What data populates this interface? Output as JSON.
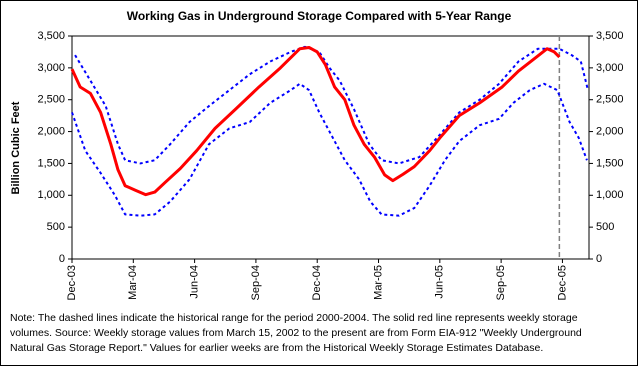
{
  "chart_data": {
    "type": "line",
    "title": "Working Gas in Underground Storage Compared with 5-Year Range",
    "y_label": "Billion Cubic Feet",
    "xlim": [
      0,
      25.3
    ],
    "xticks": [
      {
        "value": 0,
        "label": "Dec-03"
      },
      {
        "value": 3,
        "label": "Mar-04"
      },
      {
        "value": 6,
        "label": "Jun-04"
      },
      {
        "value": 9,
        "label": "Sep-04"
      },
      {
        "value": 12,
        "label": "Dec-04"
      },
      {
        "value": 15,
        "label": "Mar-05"
      },
      {
        "value": 18,
        "label": "Jun-05"
      },
      {
        "value": 21,
        "label": "Sep-05"
      },
      {
        "value": 24,
        "label": "Dec-05"
      }
    ],
    "ylim": [
      0,
      3500
    ],
    "yticks": [
      0,
      500,
      {
        "value": 1000,
        "label": "1,000"
      },
      {
        "value": 1500,
        "label": "1,500"
      },
      {
        "value": 2000,
        "label": "2,000"
      },
      {
        "value": 2500,
        "label": "2,500"
      },
      {
        "value": 3000,
        "label": "3,000"
      },
      {
        "value": 3500,
        "label": "3,500"
      }
    ],
    "y2lim": [
      0,
      3500
    ],
    "y2ticks": [
      0,
      500,
      {
        "value": 1000,
        "label": "1,000"
      },
      {
        "value": 1500,
        "label": "1,500"
      },
      {
        "value": 2000,
        "label": "2,000"
      },
      {
        "value": 2500,
        "label": "2,500"
      },
      {
        "value": 3000,
        "label": "3,000"
      },
      {
        "value": 3500,
        "label": "3,500"
      }
    ],
    "vline": {
      "x": 23.85,
      "color": "#808080"
    },
    "series": [
      {
        "color": "#0000ff",
        "style": "dashed",
        "x": [
          0.15,
          0.9,
          1.65,
          2.25,
          2.6,
          3.35,
          4.05,
          4.8,
          5.75,
          6.7,
          7.7,
          8.7,
          9.7,
          10.7,
          11.4,
          12.1,
          12.6,
          13.1,
          13.8,
          14.55,
          15.15,
          16,
          17,
          18,
          18.95,
          19.95,
          20.9,
          21.85,
          22.8,
          23.85,
          24.45,
          24.9,
          25.25
        ],
        "values": [
          3200,
          2800,
          2400,
          1800,
          1550,
          1500,
          1550,
          1800,
          2150,
          2400,
          2650,
          2900,
          3100,
          3250,
          3330,
          3250,
          3000,
          2800,
          2350,
          1800,
          1550,
          1500,
          1600,
          1950,
          2300,
          2500,
          2750,
          3100,
          3300,
          3300,
          3200,
          3100,
          2650
        ]
      },
      {
        "color": "#0000ff",
        "style": "dashed",
        "x": [
          0,
          0.65,
          1.4,
          2.1,
          2.6,
          3.35,
          4.05,
          4.8,
          5.75,
          6.7,
          7.7,
          8.7,
          9.7,
          10.7,
          11.15,
          11.6,
          12.1,
          12.6,
          13.35,
          14.05,
          14.6,
          15.15,
          16,
          16.75,
          17.5,
          18.25,
          18.95,
          19.95,
          20.9,
          21.6,
          22.4,
          23.1,
          23.75,
          24.35,
          24.8,
          25.2
        ],
        "values": [
          2300,
          1700,
          1350,
          1000,
          700,
          680,
          700,
          900,
          1250,
          1800,
          2050,
          2150,
          2450,
          2650,
          2750,
          2650,
          2300,
          2000,
          1550,
          1250,
          900,
          700,
          680,
          800,
          1150,
          1550,
          1850,
          2100,
          2200,
          2450,
          2650,
          2750,
          2650,
          2150,
          1900,
          1550
        ]
      },
      {
        "color": "#ff0000",
        "style": "solid",
        "x": [
          0,
          0.4,
          0.9,
          1.4,
          1.9,
          2.25,
          2.6,
          3.1,
          3.6,
          4.05,
          4.55,
          5.3,
          6.1,
          7,
          8,
          9.15,
          10.2,
          11.15,
          11.6,
          12,
          12.4,
          12.85,
          13.35,
          13.8,
          14.3,
          14.8,
          15.3,
          15.7,
          16.2,
          16.75,
          17.5,
          18,
          18.95,
          19.95,
          21.05,
          21.85,
          22.65,
          23.25,
          23.6,
          23.85
        ],
        "values": [
          2980,
          2700,
          2600,
          2300,
          1800,
          1400,
          1150,
          1080,
          1010,
          1050,
          1200,
          1420,
          1700,
          2050,
          2350,
          2700,
          3000,
          3300,
          3320,
          3250,
          3050,
          2700,
          2500,
          2100,
          1800,
          1600,
          1320,
          1230,
          1330,
          1450,
          1700,
          1900,
          2250,
          2450,
          2700,
          2950,
          3150,
          3300,
          3250,
          3170
        ]
      }
    ],
    "note": [
      "Note:   The dashed lines indicate the historical range for the period 2000-2004.  The solid red line represents weekly storage",
      "volumes.  Source:  Weekly storage values from March 15, 2002 to the present are from Form EIA-912 \"Weekly Underground",
      "Natural Gas Storage Report.\"  Values for earlier weeks are from the Historical Weekly Storage Estimates Database."
    ]
  }
}
